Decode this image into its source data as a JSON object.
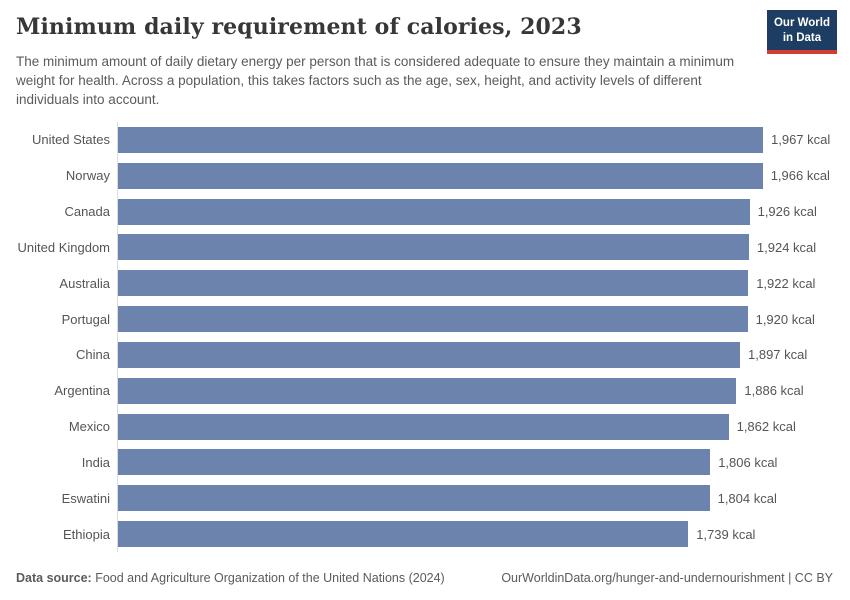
{
  "header": {
    "title": "Minimum daily requirement of calories, 2023",
    "subtitle": "The minimum amount of daily dietary energy per person that is considered adequate to ensure they maintain a minimum weight for health. Across a population, this takes factors such as the age, sex, height, and activity levels of different individuals into account.",
    "logo": {
      "line1": "Our World",
      "line2": "in Data"
    }
  },
  "footer": {
    "datasource_label": "Data source:",
    "datasource_value": " Food and Agriculture Organization of the United Nations (2024)",
    "link": "OurWorldinData.org/hunger-and-undernourishment",
    "separator": " | ",
    "license": "CC BY"
  },
  "colors": {
    "bar": "#6c84ad",
    "axis_line": "#dbdbdb",
    "logo_bg": "#1d3d63",
    "logo_underline": "#d13d33",
    "title_text": "#383636",
    "muted_text": "#5b5b5b",
    "label_text": "#555555"
  },
  "chart_data": {
    "type": "bar",
    "orientation": "horizontal",
    "title": "Minimum daily requirement of calories, 2023",
    "xlabel": "",
    "ylabel": "",
    "unit": "kcal",
    "xlim": [
      0,
      1967
    ],
    "grid": false,
    "legend": false,
    "categories": [
      "United States",
      "Norway",
      "Canada",
      "United Kingdom",
      "Australia",
      "Portugal",
      "China",
      "Argentina",
      "Mexico",
      "India",
      "Eswatini",
      "Ethiopia"
    ],
    "values": [
      1967,
      1966,
      1926,
      1924,
      1922,
      1920,
      1897,
      1886,
      1862,
      1806,
      1804,
      1739
    ],
    "value_labels": [
      "1,967 kcal",
      "1,966 kcal",
      "1,926 kcal",
      "1,924 kcal",
      "1,922 kcal",
      "1,920 kcal",
      "1,897 kcal",
      "1,886 kcal",
      "1,862 kcal",
      "1,806 kcal",
      "1,804 kcal",
      "1,739 kcal"
    ]
  }
}
